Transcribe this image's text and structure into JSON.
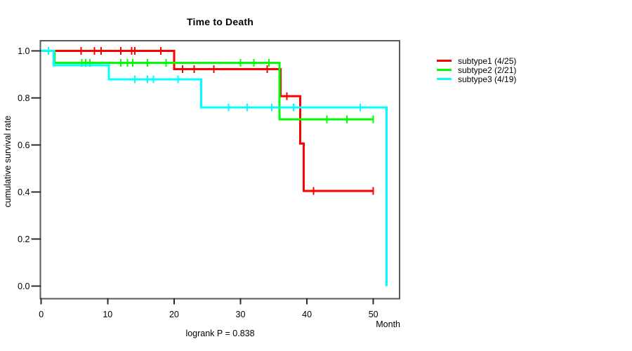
{
  "chart_data": {
    "type": "line",
    "subtype": "kaplan-meier-survival-step",
    "title": "Time to Death",
    "ylabel": "cumulative survival rate",
    "xlabel": "Month",
    "annotation": "logrank P = 0.838",
    "xlim": [
      0,
      54
    ],
    "ylim": [
      0.0,
      1.0
    ],
    "xticks": [
      0,
      10,
      20,
      30,
      40,
      50
    ],
    "yticks": [
      0.0,
      0.2,
      0.4,
      0.6,
      0.8,
      1.0
    ],
    "grid": false,
    "legend_position": "right-outside",
    "axis_color": "#5a5a5a",
    "tick_color": "#2b2b2b",
    "text_color": "#000000",
    "series": [
      {
        "label": "subtype1 (4/25)",
        "color": "#ff0000",
        "events_over_n": "4/25",
        "points": [
          [
            0,
            1.0
          ],
          [
            20,
            0.923
          ],
          [
            36,
            0.808
          ],
          [
            39,
            0.606
          ],
          [
            39.5,
            0.404
          ]
        ],
        "end_time": 50,
        "censors": [
          [
            6,
            1.0
          ],
          [
            8,
            1.0
          ],
          [
            9,
            1.0
          ],
          [
            12,
            1.0
          ],
          [
            13.6,
            1.0
          ],
          [
            14.1,
            1.0
          ],
          [
            18,
            1.0
          ],
          [
            21.3,
            0.923
          ],
          [
            23,
            0.923
          ],
          [
            26,
            0.923
          ],
          [
            34,
            0.923
          ],
          [
            37,
            0.808
          ],
          [
            41,
            0.404
          ],
          [
            50,
            0.404
          ]
        ]
      },
      {
        "label": "subtype2 (2/21)",
        "color": "#00ff00",
        "events_over_n": "2/21",
        "points": [
          [
            0,
            1.0
          ],
          [
            2,
            0.95
          ],
          [
            35.85,
            0.71
          ]
        ],
        "end_time": 50,
        "censors": [
          [
            6.1,
            0.95
          ],
          [
            6.7,
            0.95
          ],
          [
            7.3,
            0.95
          ],
          [
            12,
            0.95
          ],
          [
            13,
            0.95
          ],
          [
            13.8,
            0.95
          ],
          [
            16,
            0.95
          ],
          [
            18.8,
            0.95
          ],
          [
            30,
            0.95
          ],
          [
            32,
            0.95
          ],
          [
            34.3,
            0.95
          ],
          [
            43,
            0.71
          ],
          [
            46,
            0.71
          ],
          [
            50,
            0.71
          ]
        ]
      },
      {
        "label": "subtype3 (4/19)",
        "color": "#00ffff",
        "events_over_n": "4/19",
        "points": [
          [
            0,
            1.0
          ],
          [
            1.9,
            0.94
          ],
          [
            10.2,
            0.88
          ],
          [
            24.1,
            0.76
          ],
          [
            52,
            0.0
          ]
        ],
        "end_time": 52,
        "censors": [
          [
            1.1,
            1.0
          ],
          [
            14.1,
            0.88
          ],
          [
            16,
            0.88
          ],
          [
            16.9,
            0.88
          ],
          [
            20.6,
            0.88
          ],
          [
            28.2,
            0.76
          ],
          [
            31,
            0.76
          ],
          [
            34.7,
            0.76
          ],
          [
            38,
            0.76
          ],
          [
            48,
            0.76
          ]
        ]
      }
    ]
  }
}
